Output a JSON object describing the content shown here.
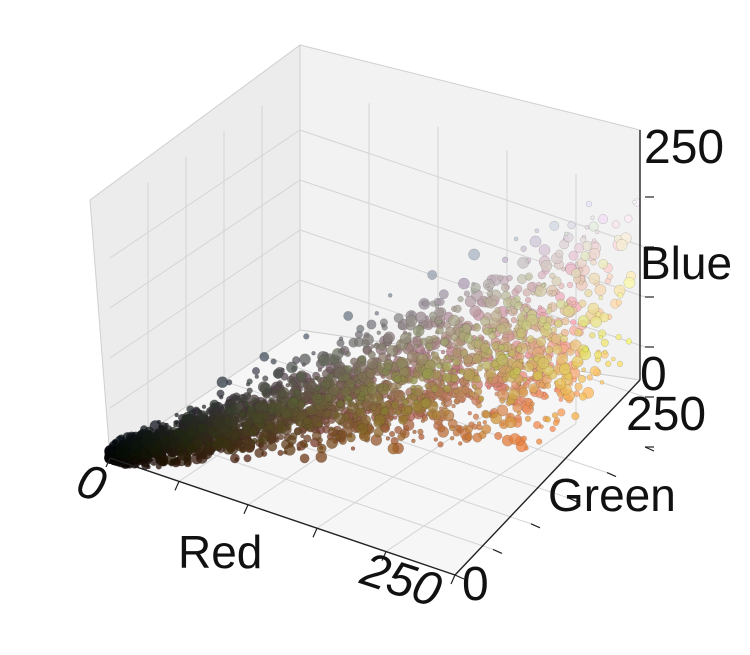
{
  "chart_data": {
    "type": "scatter",
    "projection": "3d",
    "title": "",
    "xlabel": "Red",
    "ylabel": "Green",
    "zlabel": "Blue",
    "xlim": [
      0,
      255
    ],
    "ylim": [
      0,
      255
    ],
    "zlim": [
      0,
      255
    ],
    "x_ticks": [
      "0",
      "250"
    ],
    "y_ticks": [
      "0",
      "250"
    ],
    "z_ticks": [
      "0",
      "250"
    ],
    "grid": true,
    "legend": "none",
    "point_color_rule": "each point is colored by its own (R, G, B) value",
    "series": [
      {
        "points": [
          [
            5,
            5,
            5
          ],
          [
            20,
            15,
            12
          ],
          [
            35,
            25,
            18
          ],
          [
            50,
            35,
            25
          ],
          [
            70,
            45,
            30
          ],
          [
            90,
            55,
            35
          ],
          [
            110,
            65,
            38
          ],
          [
            130,
            75,
            42
          ],
          [
            150,
            85,
            45
          ],
          [
            170,
            100,
            55
          ],
          [
            190,
            115,
            65
          ],
          [
            210,
            130,
            75
          ],
          [
            230,
            145,
            90
          ],
          [
            245,
            165,
            100
          ],
          [
            30,
            35,
            40
          ],
          [
            50,
            60,
            70
          ],
          [
            70,
            80,
            95
          ],
          [
            90,
            100,
            115
          ],
          [
            110,
            120,
            135
          ],
          [
            130,
            140,
            155
          ],
          [
            150,
            160,
            175
          ],
          [
            170,
            180,
            195
          ],
          [
            190,
            200,
            210
          ],
          [
            210,
            215,
            225
          ],
          [
            230,
            230,
            235
          ],
          [
            250,
            250,
            250
          ],
          [
            180,
            150,
            110
          ],
          [
            200,
            170,
            120
          ],
          [
            220,
            190,
            130
          ],
          [
            240,
            210,
            150
          ],
          [
            250,
            230,
            170
          ],
          [
            240,
            200,
            100
          ],
          [
            245,
            190,
            80
          ],
          [
            230,
            170,
            60
          ],
          [
            100,
            90,
            80
          ],
          [
            140,
            120,
            100
          ],
          [
            60,
            50,
            45
          ],
          [
            160,
            120,
            80
          ],
          [
            120,
            100,
            90
          ],
          [
            200,
            160,
            120
          ],
          [
            80,
            70,
            70
          ],
          [
            40,
            30,
            28
          ]
        ]
      }
    ]
  }
}
